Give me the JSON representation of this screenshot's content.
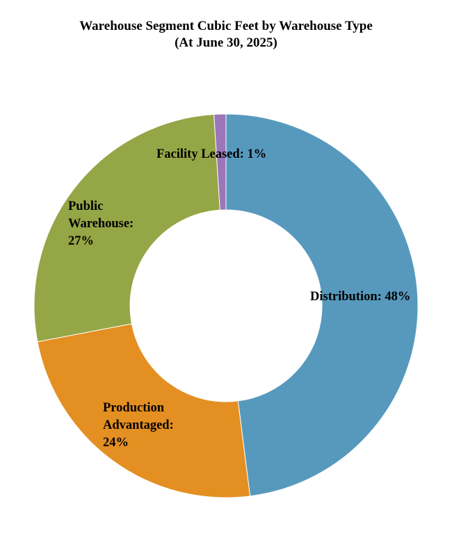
{
  "chart_data": {
    "type": "pie",
    "variant": "donut",
    "title": "Warehouse Segment Cubic Feet by Warehouse Type",
    "subtitle": "(At June 30, 2025)",
    "unit": "%",
    "slices": [
      {
        "name": "Distribution",
        "value": 48,
        "color": "#5799bd",
        "label_lines": [
          "Distribution: 48%"
        ]
      },
      {
        "name": "Production Advantaged",
        "value": 24,
        "color": "#e48f22",
        "label_lines": [
          "Production",
          "Advantaged:",
          "24%"
        ]
      },
      {
        "name": "Public Warehouse",
        "value": 27,
        "color": "#95a646",
        "label_lines": [
          "Public",
          "Warehouse:",
          "27%"
        ]
      },
      {
        "name": "Facility Leased",
        "value": 1,
        "color": "#9b76b8",
        "label_lines": [
          "Facility Leased: 1%"
        ]
      }
    ],
    "legend": "none",
    "grid": false
  }
}
